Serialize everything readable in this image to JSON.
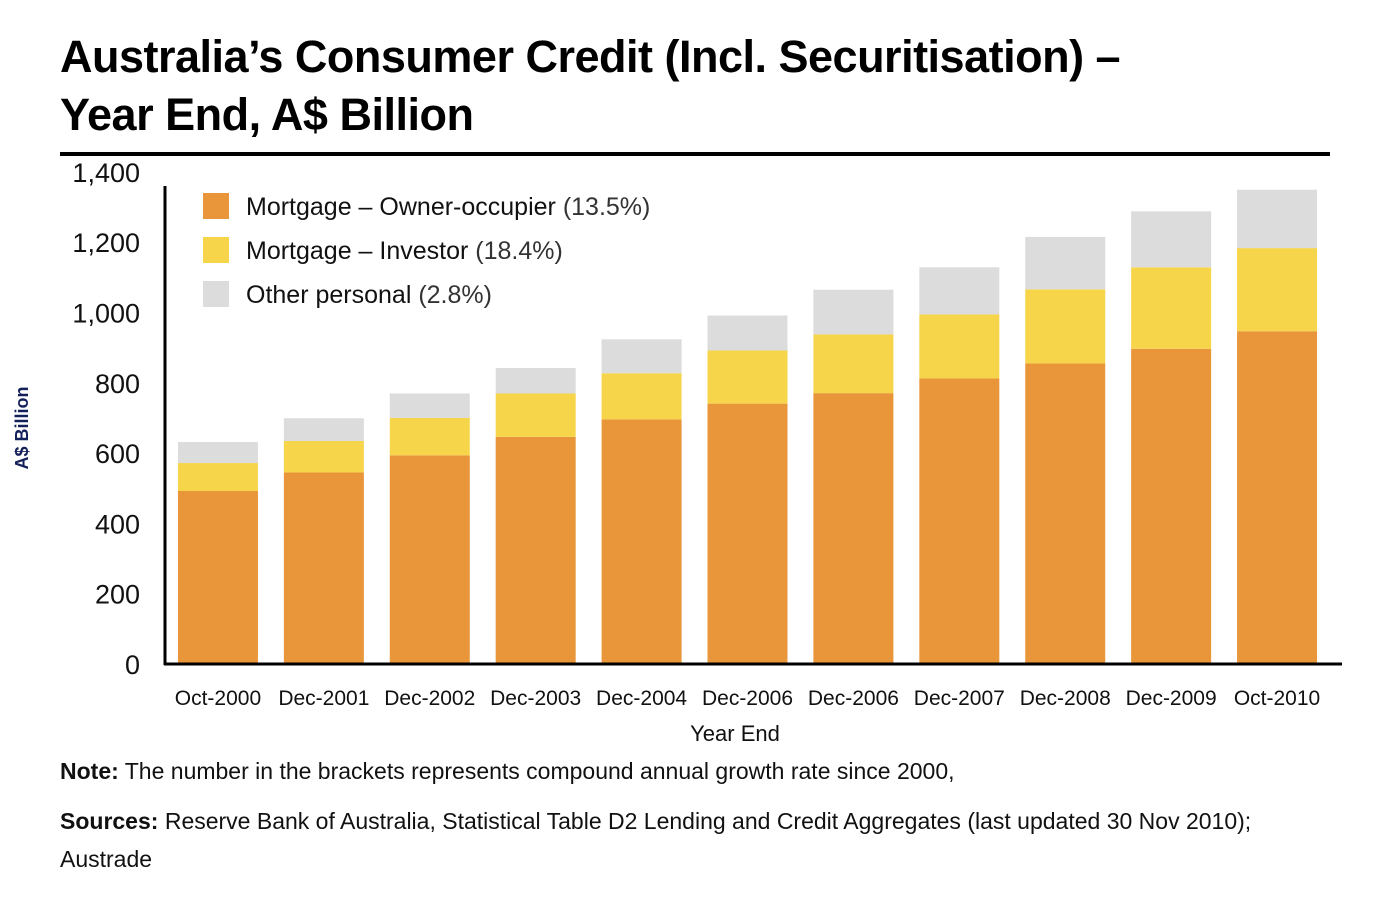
{
  "title_line1": "Australia’s Consumer Credit (Incl. Securitisation) –",
  "title_line2": "Year End, A$ Billion",
  "note_label": "Note:",
  "note_text": " The number in the brackets represents compound annual growth rate since 2000,",
  "sources_label": "Sources:",
  "sources_text": " Reserve Bank of Australia, Statistical Table D2 Lending and Credit Aggregates (last updated 30 Nov 2010); Austrade",
  "chart_data": {
    "type": "bar",
    "stacked": true,
    "xlabel": "Year End",
    "ylabel": "A$ Billion",
    "ylim": [
      0,
      1400
    ],
    "yticks": [
      "0",
      "200",
      "400",
      "600",
      "800",
      "1,000",
      "1,200",
      "1,400"
    ],
    "categories": [
      "Oct-2000",
      "Dec-2001",
      "Dec-2002",
      "Dec-2003",
      "Dec-2004",
      "Dec-2006",
      "Dec-2006",
      "Dec-2007",
      "Dec-2008",
      "Dec-2009",
      "Oct-2010"
    ],
    "legend_position": "top-left",
    "series": [
      {
        "name": "Mortgage – Owner-occupier",
        "growth": "(13.5%)",
        "color": "#E9963A",
        "values": [
          495,
          548,
          597,
          650,
          700,
          745,
          775,
          817,
          860,
          902,
          952
        ]
      },
      {
        "name": "Mortgage – Investor",
        "growth": "(18.4%)",
        "color": "#F7D54A",
        "values": [
          80,
          90,
          107,
          124,
          132,
          152,
          168,
          183,
          212,
          233,
          238
        ]
      },
      {
        "name": "Other personal",
        "growth": "(2.8%)",
        "color": "#DCDCDC",
        "values": [
          60,
          65,
          70,
          73,
          97,
          100,
          128,
          135,
          150,
          160,
          167
        ]
      }
    ]
  }
}
